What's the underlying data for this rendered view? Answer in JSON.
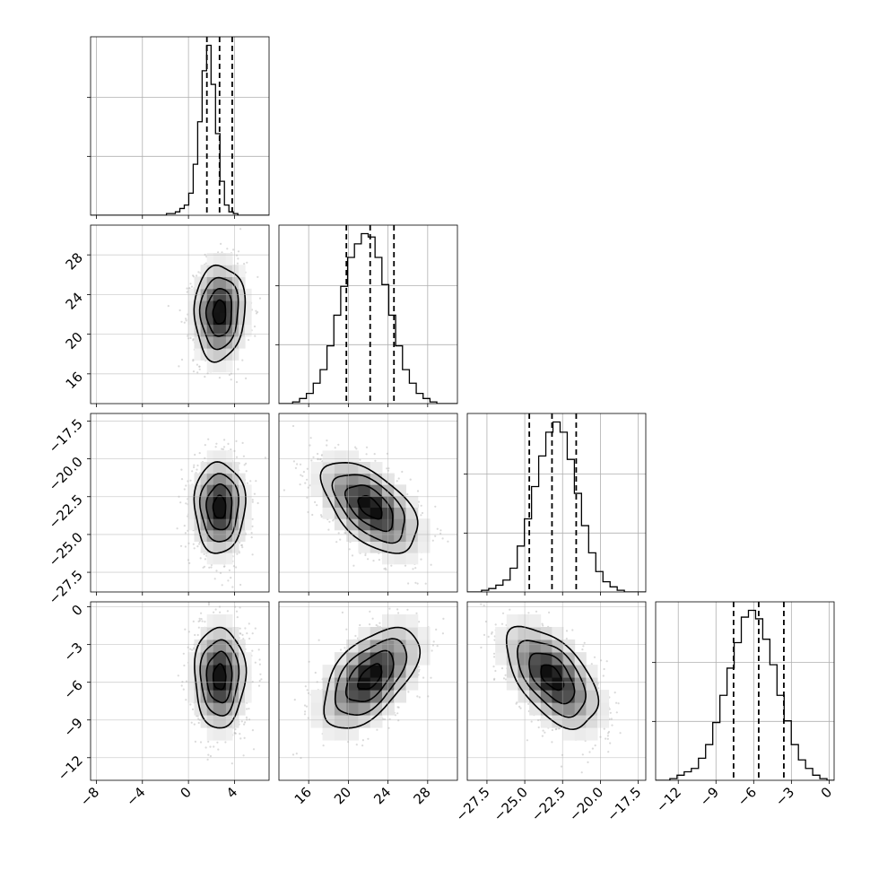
{
  "chart_data": {
    "type": "corner",
    "params": [
      {
        "range": [
          -8.5,
          7
        ],
        "ticks": [
          -8,
          -4,
          0,
          4
        ],
        "tick_labels": [
          "−8",
          "−4",
          "0",
          "4"
        ],
        "mean": 2.7,
        "sd": 1.1,
        "quantiles": [
          1.6,
          2.7,
          3.8
        ],
        "hist": [
          0,
          0,
          0,
          0,
          0,
          0,
          0,
          0,
          0,
          0,
          0,
          0,
          0,
          0,
          0,
          0,
          0,
          1,
          1,
          2,
          4,
          6,
          13,
          30,
          55,
          85,
          100,
          77,
          48,
          20,
          6,
          2,
          1,
          0,
          0,
          0,
          0,
          0,
          0,
          0
        ]
      },
      {
        "range": [
          13,
          31
        ],
        "ticks": [
          16,
          20,
          24,
          28
        ],
        "tick_labels": [
          "16",
          "20",
          "24",
          "28"
        ],
        "mean": 22.2,
        "sd": 2.4,
        "quantiles": [
          19.8,
          22.2,
          24.6
        ],
        "hist": [
          0,
          0,
          1,
          3,
          6,
          12,
          20,
          34,
          52,
          69,
          86,
          94,
          100,
          98,
          86,
          70,
          52,
          34,
          20,
          12,
          6,
          3,
          1,
          0,
          0,
          0
        ]
      },
      {
        "range": [
          -28.8,
          -17
        ],
        "ticks": [
          -27.5,
          -25.0,
          -22.5,
          -20.0,
          -17.5
        ],
        "tick_labels": [
          "−27.5",
          "−25.0",
          "−22.5",
          "−20.0",
          "−17.5"
        ],
        "mean": -23.2,
        "sd": 1.5,
        "quantiles": [
          -24.7,
          -23.2,
          -21.6
        ],
        "hist": [
          0,
          0,
          1,
          2,
          4,
          7,
          14,
          27,
          43,
          62,
          80,
          94,
          100,
          94,
          78,
          58,
          39,
          23,
          12,
          6,
          3,
          1,
          0,
          0,
          0
        ]
      },
      {
        "range": [
          -13.8,
          0.4
        ],
        "ticks": [
          -12,
          -9,
          -6,
          -3,
          0
        ],
        "tick_labels": [
          "−12",
          "−9",
          "−6",
          "−3",
          "0"
        ],
        "mean": -5.6,
        "sd": 2.0,
        "quantiles": [
          -7.6,
          -5.6,
          -3.6
        ],
        "hist": [
          0,
          0,
          1,
          3,
          5,
          7,
          13,
          21,
          34,
          50,
          66,
          81,
          96,
          100,
          95,
          83,
          68,
          50,
          35,
          21,
          12,
          7,
          3,
          1,
          0
        ]
      }
    ],
    "correlations": {
      "1-0": 0.05,
      "2-0": 0.0,
      "2-1": -0.55,
      "3-0": 0.0,
      "3-1": 0.55,
      "3-2": -0.55
    },
    "grid": true,
    "scatter_color": "#bbbbbb"
  }
}
